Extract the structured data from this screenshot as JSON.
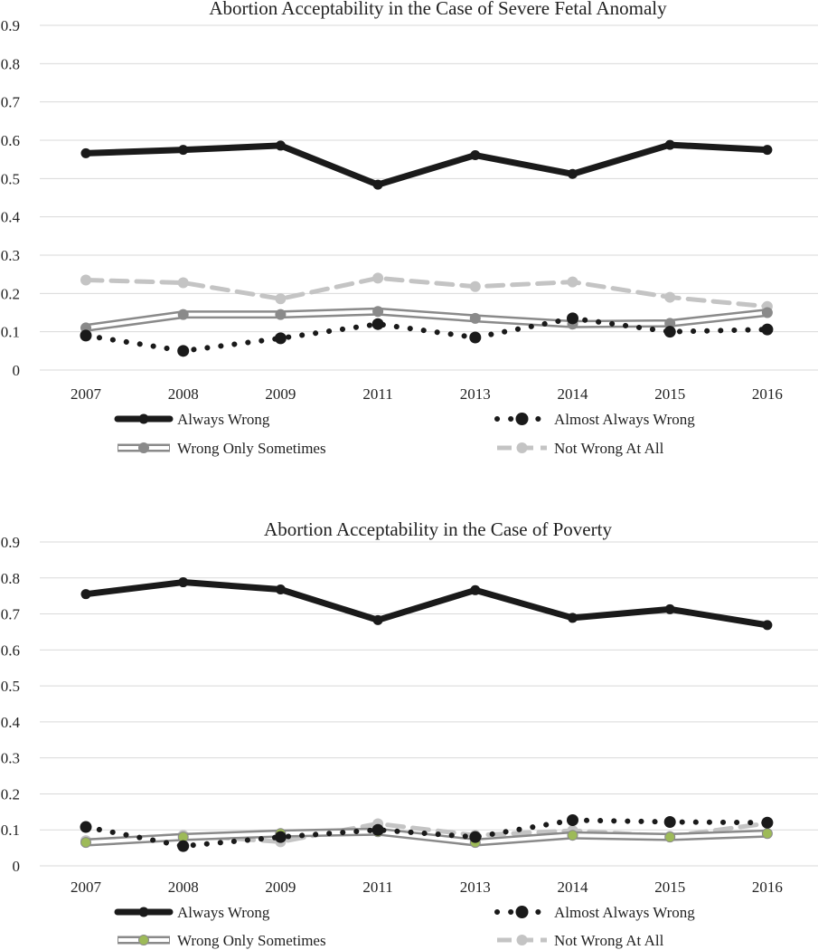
{
  "chart_data": [
    {
      "type": "line",
      "title": "Abortion Acceptability in the Case of Severe Fetal Anomaly",
      "xlabel": "",
      "ylabel": "",
      "ylim": [
        0,
        0.9
      ],
      "yticks": [
        "0",
        "0.1",
        "0.2",
        "0.3",
        "0.4",
        "0.5",
        "0.6",
        "0.7",
        "0.8",
        "0.9"
      ],
      "categories": [
        "2007",
        "2008",
        "2009",
        "2011",
        "2013",
        "2014",
        "2015",
        "2016"
      ],
      "legend_position": "bottom",
      "series": [
        {
          "name": "Always Wrong",
          "style": "thick-solid",
          "color": "#1a1a1a",
          "values": [
            0.566,
            0.575,
            0.586,
            0.484,
            0.561,
            0.512,
            0.588,
            0.575
          ]
        },
        {
          "name": "Almost Always Wrong",
          "style": "dotted",
          "color": "#1a1a1a",
          "values": [
            0.09,
            0.05,
            0.083,
            0.12,
            0.085,
            0.135,
            0.1,
            0.106
          ]
        },
        {
          "name": "Wrong Only Sometimes",
          "style": "double",
          "color": "#8a8a8a",
          "marker_color": "#8a8a8a",
          "values": [
            0.11,
            0.145,
            0.145,
            0.153,
            0.135,
            0.12,
            0.122,
            0.15
          ]
        },
        {
          "name": "Not Wrong At All",
          "style": "dashed",
          "color": "#c4c4c4",
          "values": [
            0.235,
            0.228,
            0.186,
            0.24,
            0.218,
            0.23,
            0.19,
            0.166
          ]
        }
      ]
    },
    {
      "type": "line",
      "title": "Abortion Acceptability in the Case of Poverty",
      "xlabel": "",
      "ylabel": "",
      "ylim": [
        0,
        0.9
      ],
      "yticks": [
        "0",
        "0.1",
        "0.2",
        "0.3",
        "0.4",
        "0.5",
        "0.6",
        "0.7",
        "0.8",
        "0.9"
      ],
      "categories": [
        "2007",
        "2008",
        "2009",
        "2011",
        "2013",
        "2014",
        "2015",
        "2016"
      ],
      "legend_position": "bottom",
      "series": [
        {
          "name": "Always Wrong",
          "style": "thick-solid",
          "color": "#1a1a1a",
          "values": [
            0.755,
            0.788,
            0.768,
            0.683,
            0.766,
            0.689,
            0.713,
            0.669
          ]
        },
        {
          "name": "Almost Always Wrong",
          "style": "dotted",
          "color": "#1a1a1a",
          "values": [
            0.108,
            0.055,
            0.08,
            0.1,
            0.08,
            0.127,
            0.122,
            0.12
          ]
        },
        {
          "name": "Wrong Only Sometimes",
          "style": "double",
          "color": "#8a8a8a",
          "marker_color": "#9dba58",
          "values": [
            0.065,
            0.08,
            0.09,
            0.095,
            0.065,
            0.085,
            0.08,
            0.09
          ]
        },
        {
          "name": "Not Wrong At All",
          "style": "dashed",
          "color": "#c4c4c4",
          "values": [
            0.07,
            0.085,
            0.067,
            0.117,
            0.085,
            0.098,
            0.082,
            0.118
          ]
        }
      ]
    }
  ]
}
